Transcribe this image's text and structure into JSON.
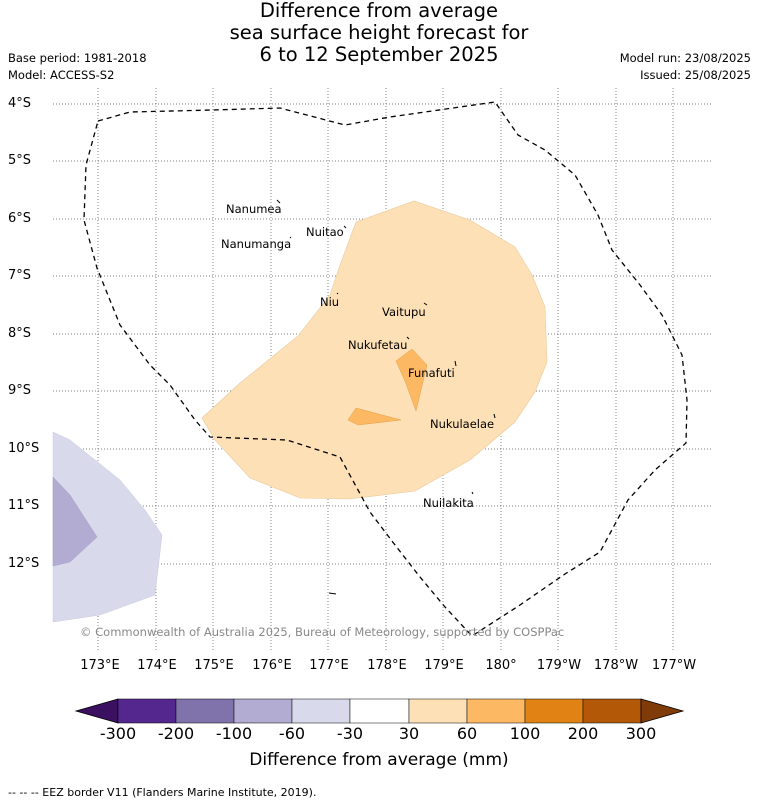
{
  "title_lines": [
    "Difference from average",
    "sea surface height forecast for",
    "6 to 12 September 2025"
  ],
  "base_period": "Base period: 1981-2018",
  "model": "Model: ACCESS-S2",
  "model_run": "Model run: 23/08/2025",
  "issued": "Issued: 25/08/2025",
  "lat_labels": [
    "4°S",
    "5°S",
    "6°S",
    "7°S",
    "8°S",
    "9°S",
    "10°S",
    "11°S",
    "12°S"
  ],
  "lon_labels": [
    "173°E",
    "174°E",
    "175°E",
    "176°E",
    "177°E",
    "178°E",
    "179°E",
    "180°",
    "179°W",
    "178°W",
    "177°W"
  ],
  "islands": [
    {
      "name": "Nanumea"
    },
    {
      "name": "Nuitao"
    },
    {
      "name": "Nanumanga"
    },
    {
      "name": "Niu"
    },
    {
      "name": "Vaitupu"
    },
    {
      "name": "Nukufetau"
    },
    {
      "name": "Funafuti"
    },
    {
      "name": "Nukulaelae"
    },
    {
      "name": "Nuilakita"
    }
  ],
  "copyright": "© Commonwealth of Australia 2025, Bureau of Meteorology, supported by COSPPac",
  "colorbar": {
    "label": "Difference from average (mm)",
    "ticks": [
      "-300",
      "-200",
      "-100",
      "-60",
      "-30",
      "30",
      "60",
      "100",
      "200",
      "300"
    ],
    "colors": [
      "#3b1060",
      "#54278f",
      "#8073ac",
      "#b2abd2",
      "#d8daeb",
      "#ffffff",
      "#fee0b6",
      "#fdb863",
      "#e08214",
      "#b35806",
      "#7f3b08"
    ]
  },
  "footnote": "--  --  -- EEZ border V11 (Flanders Marine Institute, 2019)."
}
